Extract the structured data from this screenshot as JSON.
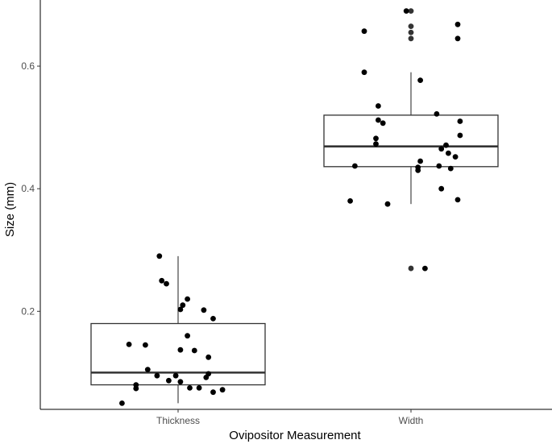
{
  "chart_data": {
    "type": "boxplot",
    "xlabel": "Ovipositor Measurement",
    "ylabel": "Size (mm)",
    "categories": [
      "Thickness",
      "Width"
    ],
    "ylim": [
      0.04,
      0.7
    ],
    "yticks": [
      0.2,
      0.4,
      0.6
    ],
    "ytick_labels": [
      "0.2",
      "0.4",
      "0.6"
    ],
    "grid": false,
    "legend": "none",
    "colors": {
      "box": "#333333",
      "points": "#000000",
      "outliers": "#333333",
      "axis": "#000000"
    },
    "boxes": [
      {
        "category": "Thickness",
        "whisker_low": 0.05,
        "q1": 0.08,
        "median": 0.1,
        "q3": 0.18,
        "whisker_high": 0.29,
        "outliers": []
      },
      {
        "category": "Width",
        "whisker_low": 0.375,
        "q1": 0.436,
        "median": 0.469,
        "q3": 0.52,
        "whisker_high": 0.59,
        "outliers": [
          0.27,
          0.645,
          0.655,
          0.665,
          0.69
        ]
      }
    ],
    "points": [
      {
        "category": "Thickness",
        "jitter": -0.08,
        "y": 0.29
      },
      {
        "category": "Thickness",
        "jitter": 0.04,
        "y": 0.22
      },
      {
        "category": "Thickness",
        "jitter": 0.02,
        "y": 0.21
      },
      {
        "category": "Thickness",
        "jitter": 0.01,
        "y": 0.203
      },
      {
        "category": "Thickness",
        "jitter": 0.11,
        "y": 0.202
      },
      {
        "category": "Thickness",
        "jitter": 0.15,
        "y": 0.188
      },
      {
        "category": "Thickness",
        "jitter": -0.07,
        "y": 0.25
      },
      {
        "category": "Thickness",
        "jitter": -0.05,
        "y": 0.245
      },
      {
        "category": "Thickness",
        "jitter": 0.04,
        "y": 0.16
      },
      {
        "category": "Thickness",
        "jitter": -0.21,
        "y": 0.146
      },
      {
        "category": "Thickness",
        "jitter": -0.14,
        "y": 0.145
      },
      {
        "category": "Thickness",
        "jitter": 0.01,
        "y": 0.137
      },
      {
        "category": "Thickness",
        "jitter": 0.07,
        "y": 0.136
      },
      {
        "category": "Thickness",
        "jitter": 0.13,
        "y": 0.125
      },
      {
        "category": "Thickness",
        "jitter": -0.13,
        "y": 0.105
      },
      {
        "category": "Thickness",
        "jitter": -0.09,
        "y": 0.095
      },
      {
        "category": "Thickness",
        "jitter": -0.01,
        "y": 0.095
      },
      {
        "category": "Thickness",
        "jitter": 0.13,
        "y": 0.098
      },
      {
        "category": "Thickness",
        "jitter": 0.12,
        "y": 0.092
      },
      {
        "category": "Thickness",
        "jitter": -0.04,
        "y": 0.087
      },
      {
        "category": "Thickness",
        "jitter": 0.01,
        "y": 0.085
      },
      {
        "category": "Thickness",
        "jitter": -0.18,
        "y": 0.08
      },
      {
        "category": "Thickness",
        "jitter": -0.18,
        "y": 0.074
      },
      {
        "category": "Thickness",
        "jitter": 0.05,
        "y": 0.075
      },
      {
        "category": "Thickness",
        "jitter": 0.09,
        "y": 0.075
      },
      {
        "category": "Thickness",
        "jitter": 0.15,
        "y": 0.068
      },
      {
        "category": "Thickness",
        "jitter": 0.19,
        "y": 0.072
      },
      {
        "category": "Thickness",
        "jitter": -0.24,
        "y": 0.05
      },
      {
        "category": "Width",
        "jitter": -0.02,
        "y": 0.69
      },
      {
        "category": "Width",
        "jitter": 0.2,
        "y": 0.668
      },
      {
        "category": "Width",
        "jitter": -0.2,
        "y": 0.657
      },
      {
        "category": "Width",
        "jitter": 0.2,
        "y": 0.645
      },
      {
        "category": "Width",
        "jitter": -0.2,
        "y": 0.59
      },
      {
        "category": "Width",
        "jitter": 0.04,
        "y": 0.577
      },
      {
        "category": "Width",
        "jitter": -0.14,
        "y": 0.535
      },
      {
        "category": "Width",
        "jitter": 0.11,
        "y": 0.522
      },
      {
        "category": "Width",
        "jitter": -0.14,
        "y": 0.512
      },
      {
        "category": "Width",
        "jitter": -0.12,
        "y": 0.507
      },
      {
        "category": "Width",
        "jitter": 0.21,
        "y": 0.51
      },
      {
        "category": "Width",
        "jitter": 0.21,
        "y": 0.487
      },
      {
        "category": "Width",
        "jitter": -0.15,
        "y": 0.482
      },
      {
        "category": "Width",
        "jitter": -0.15,
        "y": 0.473
      },
      {
        "category": "Width",
        "jitter": 0.15,
        "y": 0.471
      },
      {
        "category": "Width",
        "jitter": 0.13,
        "y": 0.465
      },
      {
        "category": "Width",
        "jitter": 0.16,
        "y": 0.458
      },
      {
        "category": "Width",
        "jitter": 0.19,
        "y": 0.452
      },
      {
        "category": "Width",
        "jitter": 0.04,
        "y": 0.445
      },
      {
        "category": "Width",
        "jitter": -0.24,
        "y": 0.437
      },
      {
        "category": "Width",
        "jitter": 0.03,
        "y": 0.435
      },
      {
        "category": "Width",
        "jitter": 0.03,
        "y": 0.43
      },
      {
        "category": "Width",
        "jitter": 0.12,
        "y": 0.437
      },
      {
        "category": "Width",
        "jitter": 0.17,
        "y": 0.433
      },
      {
        "category": "Width",
        "jitter": 0.13,
        "y": 0.4
      },
      {
        "category": "Width",
        "jitter": 0.2,
        "y": 0.382
      },
      {
        "category": "Width",
        "jitter": -0.26,
        "y": 0.38
      },
      {
        "category": "Width",
        "jitter": -0.1,
        "y": 0.375
      },
      {
        "category": "Width",
        "jitter": 0.06,
        "y": 0.27
      }
    ]
  }
}
